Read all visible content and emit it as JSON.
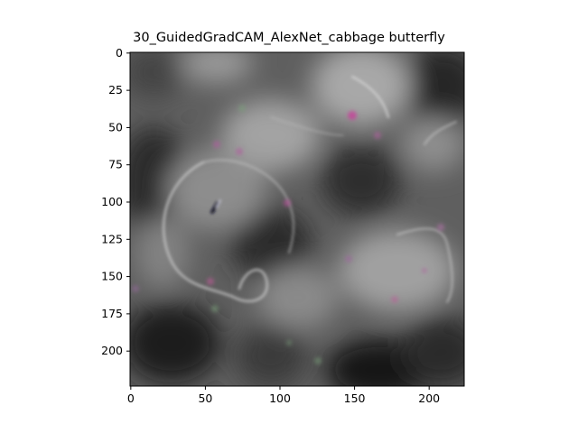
{
  "figure": {
    "title": "30_GuidedGradCAM_AlexNet_cabbage butterfly"
  },
  "image": {
    "description_colors": {
      "background_dark": "#1e1e1e",
      "background_mid": "#6f6f6f",
      "highlight": "#bdbdbd",
      "speckle_pink": "#c05a9a",
      "speckle_green": "#7aa07a"
    },
    "x_ticks": [
      "0",
      "50",
      "100",
      "150",
      "200"
    ],
    "y_ticks": [
      "0",
      "25",
      "50",
      "75",
      "100",
      "125",
      "150",
      "175",
      "200"
    ],
    "x_tick_values": [
      0,
      50,
      100,
      150,
      200
    ],
    "y_tick_values": [
      0,
      25,
      50,
      75,
      100,
      125,
      150,
      175,
      200
    ],
    "extent": [
      0,
      224
    ]
  }
}
